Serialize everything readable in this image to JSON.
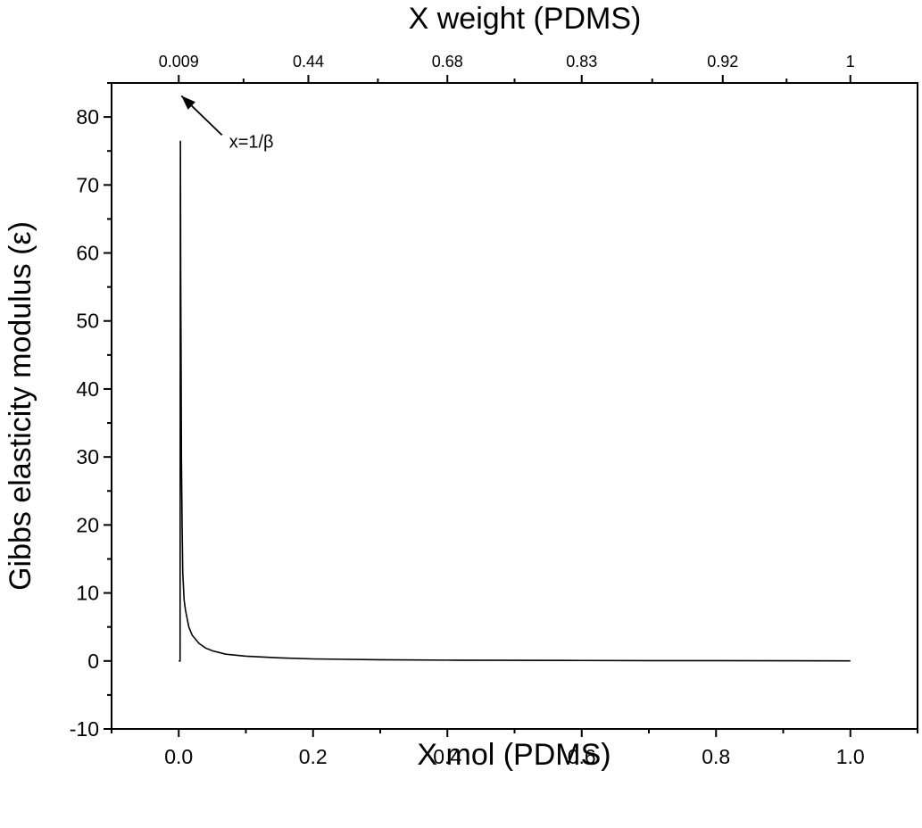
{
  "chart_data": {
    "type": "line",
    "xlabel": "X mol (PDMS)",
    "ylabel": "Gibbs elasticity modulus (ε)",
    "top_xlabel": "X weight (PDMS)",
    "xlim": [
      -0.1,
      1.1
    ],
    "ylim": [
      -10,
      85
    ],
    "x_ticks": [
      0.0,
      0.2,
      0.4,
      0.6,
      0.8,
      1.0
    ],
    "x_tick_labels": [
      "0.0",
      "0.2",
      "0.4",
      "0.6",
      "0.8",
      "1.0"
    ],
    "y_ticks": [
      -10,
      0,
      10,
      20,
      30,
      40,
      50,
      60,
      70,
      80
    ],
    "y_tick_labels": [
      "-10",
      "0",
      "10",
      "20",
      "30",
      "40",
      "50",
      "60",
      "70",
      "80"
    ],
    "top_ticks": [
      {
        "x_mol": 0.0,
        "label": "0.009"
      },
      {
        "x_mol": 0.193,
        "label": "0.44"
      },
      {
        "x_mol": 0.4,
        "label": "0.68"
      },
      {
        "x_mol": 0.6,
        "label": "0.83"
      },
      {
        "x_mol": 0.81,
        "label": "0.92"
      },
      {
        "x_mol": 1.0,
        "label": "1"
      }
    ],
    "grid": false,
    "series": [
      {
        "x": [
          0.0,
          0.002,
          0.0025,
          0.003,
          0.0035,
          0.004,
          0.005,
          0.006,
          0.008,
          0.01,
          0.015,
          0.02,
          0.03,
          0.04,
          0.05,
          0.07,
          0.1,
          0.15,
          0.2,
          0.3,
          0.4,
          0.5,
          0.6,
          0.7,
          0.8,
          0.9,
          1.0
        ],
        "y": [
          0.0,
          0.0,
          76.5,
          55.0,
          45.0,
          30.0,
          20.0,
          13.0,
          9.0,
          7.5,
          5.0,
          3.8,
          2.6,
          1.9,
          1.5,
          1.0,
          0.7,
          0.45,
          0.3,
          0.18,
          0.12,
          0.09,
          0.07,
          0.05,
          0.04,
          0.03,
          0.02
        ],
        "color": "#000000"
      }
    ],
    "annotations": [
      {
        "text": "x=1/β",
        "x": 0.075,
        "y": 75.5,
        "arrow_to": [
          0.0,
          83.5
        ]
      }
    ]
  }
}
